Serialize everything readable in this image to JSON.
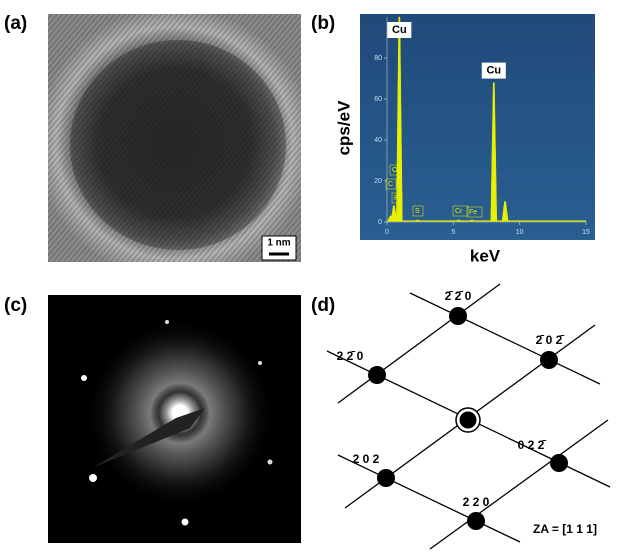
{
  "panels": {
    "a": {
      "label": "(a)",
      "scale_bar": "1 nm"
    },
    "b": {
      "label": "(b)",
      "ylabel": "cps/eV",
      "xlabel": "keV",
      "xlim": [
        0,
        15
      ],
      "ylim": [
        0,
        100
      ],
      "xticks": [
        0,
        5,
        10,
        15
      ],
      "yticks": [
        0,
        20,
        40,
        60,
        80
      ],
      "peaks": [
        {
          "label": "C",
          "energy": 0.28,
          "height": 3
        },
        {
          "label": "O",
          "energy": 0.52,
          "height": 8
        },
        {
          "label": "F",
          "energy": 0.68,
          "height": 2
        },
        {
          "label": "Cu",
          "energy": 0.93,
          "height": 100
        },
        {
          "label": "S",
          "energy": 2.31,
          "height": 1
        },
        {
          "label": "Cr",
          "energy": 5.41,
          "height": 1
        },
        {
          "label": "Fe",
          "energy": 6.4,
          "height": 1
        },
        {
          "label": "Cu",
          "energy": 8.05,
          "height": 68
        },
        {
          "energy": 8.9,
          "height": 10
        }
      ]
    },
    "c": {
      "label": "(c)"
    },
    "d": {
      "label": "(d)",
      "nodes": [
        "2̄ 2̄ 0",
        "2̄ 0 2̄",
        "2 2̄ 0",
        "2 0 2",
        "0 2 2̄",
        "2 2 0"
      ],
      "zone_axis": "ZA = [1 1 1]"
    }
  }
}
